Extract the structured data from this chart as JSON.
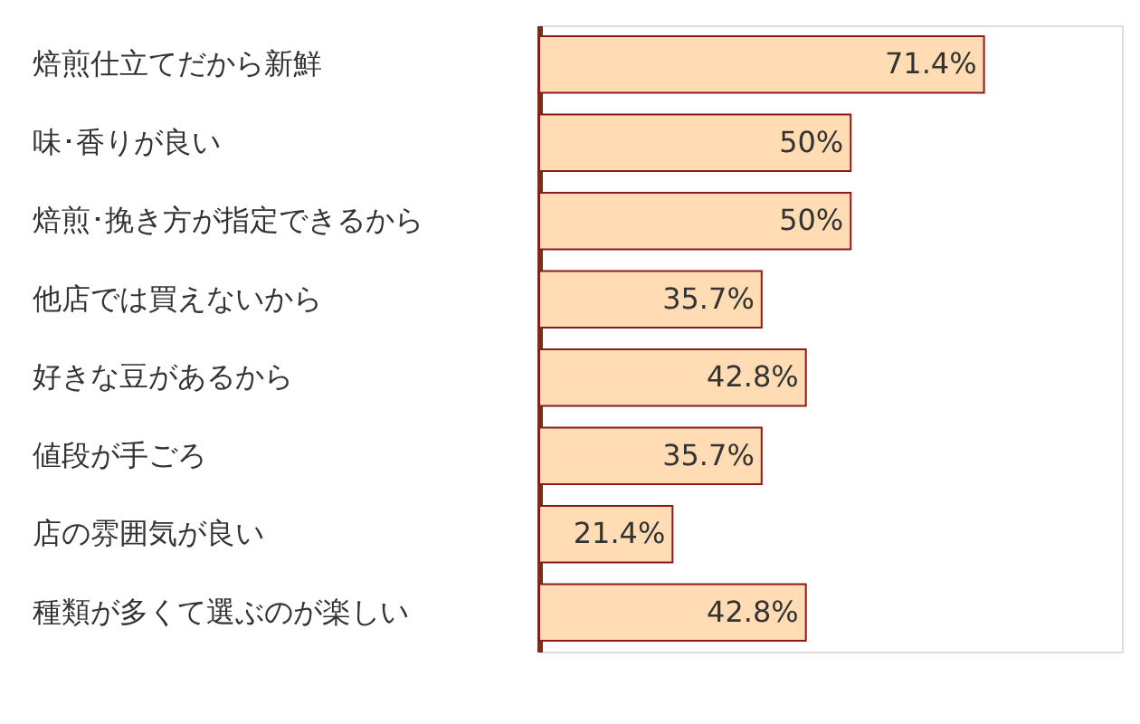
{
  "chart_data": {
    "type": "bar",
    "orientation": "horizontal",
    "categories": [
      "焙煎仕立てだから新鮮",
      "味･香りが良い",
      "焙煎･挽き方が指定できるから",
      "他店では買えないから",
      "好きな豆があるから",
      "値段が手ごろ",
      "店の雰囲気が良い",
      "種類が多くて選ぶのが楽しい"
    ],
    "values": [
      71.4,
      50,
      50,
      35.7,
      42.8,
      35.7,
      21.4,
      42.8
    ],
    "value_labels": [
      "71.4%",
      "50%",
      "50%",
      "35.7%",
      "42.8%",
      "35.7%",
      "21.4%",
      "42.8%"
    ],
    "color": "#ffdcb4"
  }
}
